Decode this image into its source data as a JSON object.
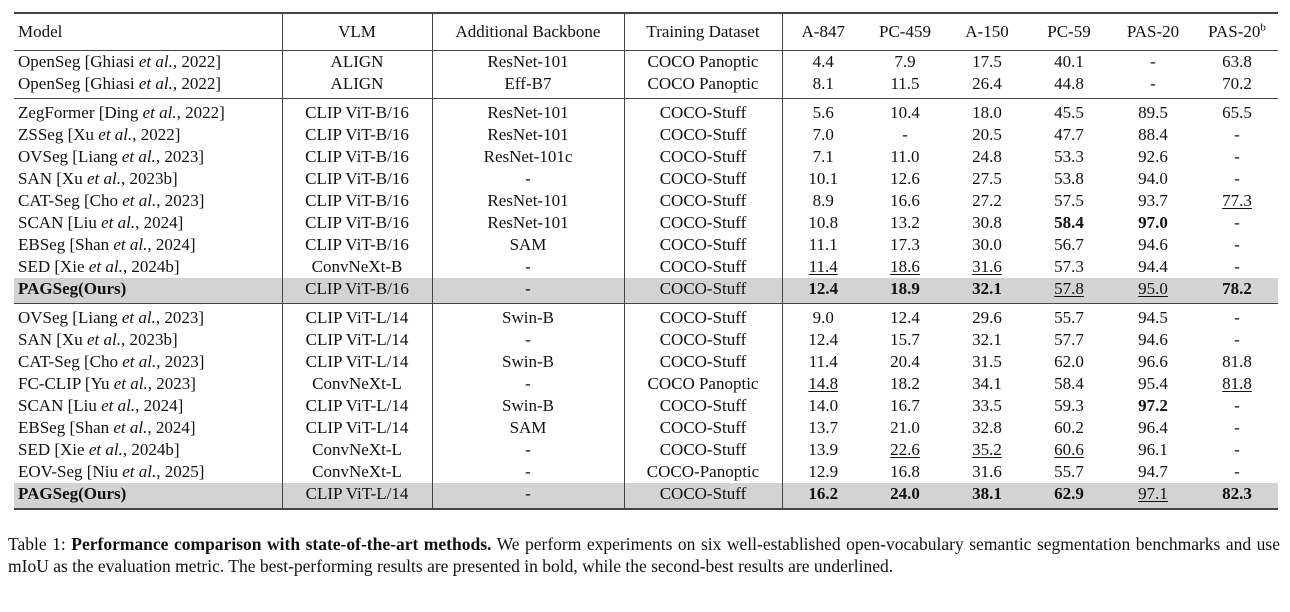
{
  "table": {
    "headers": [
      "Model",
      "VLM",
      "Additional Backbone",
      "Training Dataset",
      "A-847",
      "PC-459",
      "A-150",
      "PC-59",
      "PAS-20",
      "PAS-20"
    ],
    "header_sup": "b",
    "groups": [
      {
        "rows": [
          {
            "model": "OpenSeg [Ghiasi ",
            "model_italic": "et al.",
            "model_tail": ", 2022]",
            "vlm": "ALIGN",
            "backbone": "ResNet-101",
            "dataset": "COCO Panoptic",
            "vals": [
              "4.4",
              "7.9",
              "17.5",
              "40.1",
              "-",
              "63.8"
            ],
            "bold": [],
            "under": []
          },
          {
            "model": "OpenSeg [Ghiasi ",
            "model_italic": "et al.",
            "model_tail": ", 2022]",
            "vlm": "ALIGN",
            "backbone": "Eff-B7",
            "dataset": "COCO Panoptic",
            "vals": [
              "8.1",
              "11.5",
              "26.4",
              "44.8",
              "-",
              "70.2"
            ],
            "bold": [],
            "under": []
          }
        ]
      },
      {
        "rows": [
          {
            "model": "ZegFormer [Ding ",
            "model_italic": "et al.",
            "model_tail": ", 2022]",
            "vlm": "CLIP ViT-B/16",
            "backbone": "ResNet-101",
            "dataset": "COCO-Stuff",
            "vals": [
              "5.6",
              "10.4",
              "18.0",
              "45.5",
              "89.5",
              "65.5"
            ],
            "bold": [],
            "under": []
          },
          {
            "model": "ZSSeg [Xu ",
            "model_italic": "et al.",
            "model_tail": ", 2022]",
            "vlm": "CLIP ViT-B/16",
            "backbone": "ResNet-101",
            "dataset": "COCO-Stuff",
            "vals": [
              "7.0",
              "-",
              "20.5",
              "47.7",
              "88.4",
              "-"
            ],
            "bold": [],
            "under": []
          },
          {
            "model": "OVSeg [Liang ",
            "model_italic": "et al.",
            "model_tail": ", 2023]",
            "vlm": "CLIP ViT-B/16",
            "backbone": "ResNet-101c",
            "dataset": "COCO-Stuff",
            "vals": [
              "7.1",
              "11.0",
              "24.8",
              "53.3",
              "92.6",
              "-"
            ],
            "bold": [],
            "under": []
          },
          {
            "model": "SAN [Xu ",
            "model_italic": "et al.",
            "model_tail": ", 2023b]",
            "vlm": "CLIP ViT-B/16",
            "backbone": "-",
            "dataset": "COCO-Stuff",
            "vals": [
              "10.1",
              "12.6",
              "27.5",
              "53.8",
              "94.0",
              "-"
            ],
            "bold": [],
            "under": []
          },
          {
            "model": "CAT-Seg [Cho ",
            "model_italic": "et al.",
            "model_tail": ", 2023]",
            "vlm": "CLIP ViT-B/16",
            "backbone": "ResNet-101",
            "dataset": "COCO-Stuff",
            "vals": [
              "8.9",
              "16.6",
              "27.2",
              "57.5",
              "93.7",
              "77.3"
            ],
            "bold": [],
            "under": [
              5
            ]
          },
          {
            "model": "SCAN [Liu ",
            "model_italic": "et al.",
            "model_tail": ", 2024]",
            "vlm": "CLIP ViT-B/16",
            "backbone": "ResNet-101",
            "dataset": "COCO-Stuff",
            "vals": [
              "10.8",
              "13.2",
              "30.8",
              "58.4",
              "97.0",
              "-"
            ],
            "bold": [
              3,
              4
            ],
            "under": []
          },
          {
            "model": "EBSeg [Shan ",
            "model_italic": "et al.",
            "model_tail": ", 2024]",
            "vlm": "CLIP ViT-B/16",
            "backbone": "SAM",
            "dataset": "COCO-Stuff",
            "vals": [
              "11.1",
              "17.3",
              "30.0",
              "56.7",
              "94.6",
              "-"
            ],
            "bold": [],
            "under": []
          },
          {
            "model": "SED [Xie ",
            "model_italic": "et al.",
            "model_tail": ", 2024b]",
            "vlm": "ConvNeXt-B",
            "backbone": "-",
            "dataset": "COCO-Stuff",
            "vals": [
              "11.4",
              "18.6",
              "31.6",
              "57.3",
              "94.4",
              "-"
            ],
            "bold": [],
            "under": [
              0,
              1,
              2
            ]
          },
          {
            "model": "PAGSeg(Ours)",
            "model_italic": "",
            "model_tail": "",
            "ours": true,
            "vlm": "CLIP ViT-B/16",
            "backbone": "-",
            "dataset": "COCO-Stuff",
            "vals": [
              "12.4",
              "18.9",
              "32.1",
              "57.8",
              "95.0",
              "78.2"
            ],
            "bold": [
              0,
              1,
              2,
              5
            ],
            "under": [
              3,
              4
            ]
          }
        ]
      },
      {
        "rows": [
          {
            "model": "OVSeg [Liang ",
            "model_italic": "et al.",
            "model_tail": ", 2023]",
            "vlm": "CLIP ViT-L/14",
            "backbone": "Swin-B",
            "dataset": "COCO-Stuff",
            "vals": [
              "9.0",
              "12.4",
              "29.6",
              "55.7",
              "94.5",
              "-"
            ],
            "bold": [],
            "under": []
          },
          {
            "model": "SAN [Xu ",
            "model_italic": "et al.",
            "model_tail": ", 2023b]",
            "vlm": "CLIP ViT-L/14",
            "backbone": "-",
            "dataset": "COCO-Stuff",
            "vals": [
              "12.4",
              "15.7",
              "32.1",
              "57.7",
              "94.6",
              "-"
            ],
            "bold": [],
            "under": []
          },
          {
            "model": "CAT-Seg [Cho ",
            "model_italic": "et al.",
            "model_tail": ", 2023]",
            "vlm": "CLIP ViT-L/14",
            "backbone": "Swin-B",
            "dataset": "COCO-Stuff",
            "vals": [
              "11.4",
              "20.4",
              "31.5",
              "62.0",
              "96.6",
              "81.8"
            ],
            "bold": [],
            "under": []
          },
          {
            "model": "FC-CLIP [Yu ",
            "model_italic": "et al.",
            "model_tail": ", 2023]",
            "vlm": "ConvNeXt-L",
            "backbone": "-",
            "dataset": "COCO Panoptic",
            "vals": [
              "14.8",
              "18.2",
              "34.1",
              "58.4",
              "95.4",
              "81.8"
            ],
            "bold": [],
            "under": [
              0,
              5
            ]
          },
          {
            "model": "SCAN [Liu ",
            "model_italic": "et al.",
            "model_tail": ", 2024]",
            "vlm": "CLIP ViT-L/14",
            "backbone": "Swin-B",
            "dataset": "COCO-Stuff",
            "vals": [
              "14.0",
              "16.7",
              "33.5",
              "59.3",
              "97.2",
              "-"
            ],
            "bold": [
              4
            ],
            "under": []
          },
          {
            "model": "EBSeg [Shan ",
            "model_italic": "et al.",
            "model_tail": ", 2024]",
            "vlm": "CLIP ViT-L/14",
            "backbone": "SAM",
            "dataset": "COCO-Stuff",
            "vals": [
              "13.7",
              "21.0",
              "32.8",
              "60.2",
              "96.4",
              "-"
            ],
            "bold": [],
            "under": []
          },
          {
            "model": "SED [Xie ",
            "model_italic": "et al.",
            "model_tail": ", 2024b]",
            "vlm": "ConvNeXt-L",
            "backbone": "-",
            "dataset": "COCO-Stuff",
            "vals": [
              "13.9",
              "22.6",
              "35.2",
              "60.6",
              "96.1",
              "-"
            ],
            "bold": [],
            "under": [
              1,
              2,
              3
            ]
          },
          {
            "model": "EOV-Seg [Niu ",
            "model_italic": "et al.",
            "model_tail": ", 2025]",
            "vlm": "ConvNeXt-L",
            "backbone": "-",
            "dataset": "COCO-Panoptic",
            "vals": [
              "12.9",
              "16.8",
              "31.6",
              "55.7",
              "94.7",
              "-"
            ],
            "bold": [],
            "under": []
          },
          {
            "model": "PAGSeg(Ours)",
            "model_italic": "",
            "model_tail": "",
            "ours": true,
            "vlm": "CLIP ViT-L/14",
            "backbone": "-",
            "dataset": "COCO-Stuff",
            "vals": [
              "16.2",
              "24.0",
              "38.1",
              "62.9",
              "97.1",
              "82.3"
            ],
            "bold": [
              0,
              1,
              2,
              3,
              5
            ],
            "under": [
              4
            ]
          }
        ]
      }
    ]
  },
  "caption": {
    "label": "Table 1: ",
    "bold": "Performance comparison with state-of-the-art methods.",
    "text": " We perform experiments on six well-established open-vocabulary semantic segmentation benchmarks and use mIoU as the evaluation metric.  The best-performing results are presented in bold, while the second-best results are underlined."
  }
}
